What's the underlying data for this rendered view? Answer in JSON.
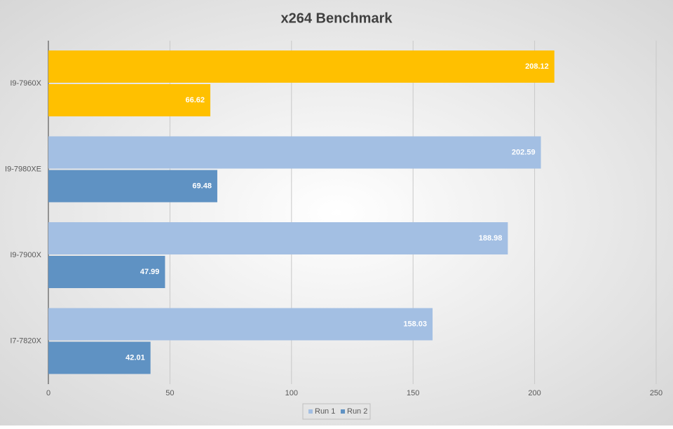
{
  "chart_data": {
    "type": "hbar",
    "title": "x264 Benchmark",
    "categories": [
      "I9-7960X",
      "I9-7980XE",
      "I9-7900X",
      "I7-7820X"
    ],
    "series": [
      {
        "name": "Run 1",
        "color": "#a3bfe3",
        "colors": [
          "#ffc000",
          "#a3bfe3",
          "#a3bfe3",
          "#a3bfe3"
        ],
        "values": [
          208.12,
          202.59,
          188.98,
          158.03
        ]
      },
      {
        "name": "Run 2",
        "color": "#5f92c3",
        "colors": [
          "#ffc000",
          "#5f92c3",
          "#5f92c3",
          "#5f92c3"
        ],
        "values": [
          66.62,
          69.48,
          47.99,
          42.01
        ]
      }
    ],
    "xlim": [
      0,
      250
    ],
    "xticks": [
      0,
      50,
      100,
      150,
      200,
      250
    ],
    "grid": true,
    "legend": "bottom"
  }
}
